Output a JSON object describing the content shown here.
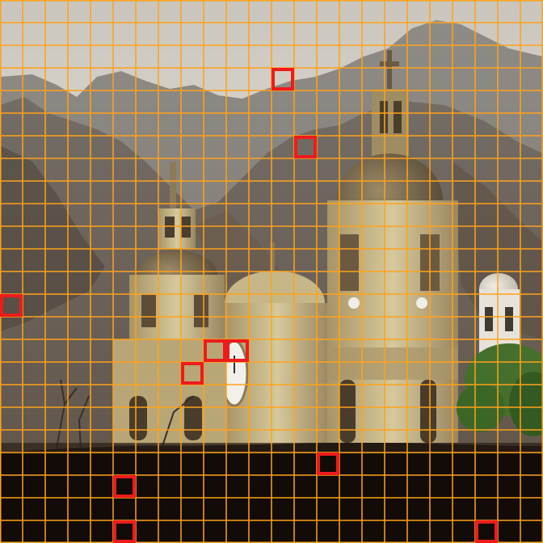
{
  "image": {
    "subject": "church-with-domes-and-bell-towers-below-mountains",
    "palette": {
      "sky": "#ddd8cc",
      "mountain_far": "#8c8a86",
      "mountain_near": "#6b625a",
      "church_stone": "#c8b98a",
      "church_shadow": "#6e5e45",
      "foreground": "#120b07",
      "tree": "#3f6a2a"
    }
  },
  "grid_overlay": {
    "columns": 24,
    "rows": 24,
    "line_color": "#ffa21a"
  },
  "highlighted_cells": {
    "color": "#ee1b1b",
    "cells": [
      {
        "col": 12,
        "row": 3
      },
      {
        "col": 13,
        "row": 6
      },
      {
        "col": 0,
        "row": 13
      },
      {
        "col": 9,
        "row": 15
      },
      {
        "col": 10,
        "row": 15
      },
      {
        "col": 8,
        "row": 16
      },
      {
        "col": 14,
        "row": 20
      },
      {
        "col": 5,
        "row": 21
      },
      {
        "col": 5,
        "row": 23
      },
      {
        "col": 21,
        "row": 23
      }
    ]
  }
}
